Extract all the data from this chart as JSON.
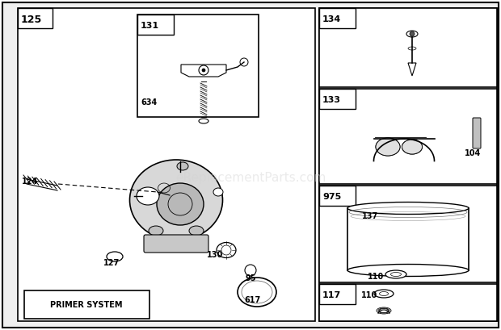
{
  "bg_color": "#ffffff",
  "watermark": "eReplacementParts.com",
  "outer_lw": 1.2,
  "inner_lw": 1.0,
  "parts": {
    "125": "125",
    "131": "131",
    "634": "634",
    "124": "124",
    "127": "127",
    "130": "130",
    "95": "95",
    "617": "617",
    "134": "134",
    "133": "133",
    "104": "104",
    "975": "975",
    "137": "137",
    "110": "110",
    "117": "117"
  },
  "primer_text": "PRIMER SYSTEM"
}
